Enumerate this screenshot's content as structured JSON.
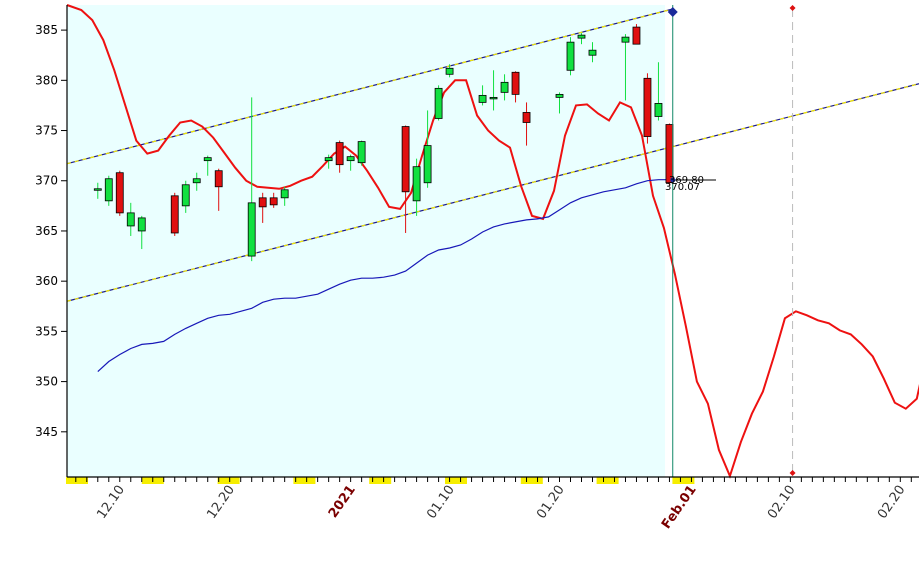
{
  "chart_data": {
    "type": "candlestick",
    "y_ticks": [
      345,
      350,
      355,
      360,
      365,
      370,
      375,
      380,
      385
    ],
    "ylim": [
      340.5,
      387.5
    ],
    "x_labels": [
      {
        "day": 2,
        "text": "12.10",
        "bold": false
      },
      {
        "day": 12,
        "text": "12.20",
        "bold": false
      },
      {
        "day": 23,
        "text": "2021",
        "bold": true
      },
      {
        "day": 32,
        "text": "01.10",
        "bold": false
      },
      {
        "day": 42,
        "text": "01.20",
        "bold": false
      },
      {
        "day": 54,
        "text": "Feb.01",
        "bold": true
      },
      {
        "day": 63,
        "text": "02.10",
        "bold": false
      },
      {
        "day": 73,
        "text": "02.20",
        "bold": false
      }
    ],
    "xlim": [
      -2.8,
      74.7
    ],
    "candles": [
      {
        "d": 0,
        "o": 369.2,
        "h": 369.8,
        "l": 368.2,
        "c": 369.2
      },
      {
        "d": 1,
        "o": 368.0,
        "h": 370.5,
        "l": 367.5,
        "c": 370.2
      },
      {
        "d": 2,
        "o": 370.8,
        "h": 371.0,
        "l": 366.5,
        "c": 366.8
      },
      {
        "d": 3,
        "o": 365.5,
        "h": 367.8,
        "l": 364.5,
        "c": 366.8
      },
      {
        "d": 4,
        "o": 365.0,
        "h": 366.5,
        "l": 363.2,
        "c": 366.3
      },
      {
        "d": 7,
        "o": 368.5,
        "h": 368.8,
        "l": 364.5,
        "c": 364.8
      },
      {
        "d": 8,
        "o": 367.5,
        "h": 370.0,
        "l": 366.8,
        "c": 369.6
      },
      {
        "d": 9,
        "o": 369.8,
        "h": 370.8,
        "l": 369.0,
        "c": 370.2
      },
      {
        "d": 10,
        "o": 372.0,
        "h": 372.5,
        "l": 370.5,
        "c": 372.3
      },
      {
        "d": 11,
        "o": 371.0,
        "h": 371.2,
        "l": 367.0,
        "c": 369.4
      },
      {
        "d": 14,
        "o": 362.5,
        "h": 378.3,
        "l": 362.0,
        "c": 367.8
      },
      {
        "d": 15,
        "o": 368.3,
        "h": 368.8,
        "l": 365.8,
        "c": 367.4
      },
      {
        "d": 16,
        "o": 368.3,
        "h": 368.8,
        "l": 367.3,
        "c": 367.6
      },
      {
        "d": 17,
        "o": 368.3,
        "h": 369.4,
        "l": 367.5,
        "c": 369.1
      },
      {
        "d": 21,
        "o": 372.0,
        "h": 372.6,
        "l": 371.2,
        "c": 372.3
      },
      {
        "d": 22,
        "o": 373.8,
        "h": 374.0,
        "l": 370.8,
        "c": 371.6
      },
      {
        "d": 23,
        "o": 372.0,
        "h": 372.6,
        "l": 371.0,
        "c": 372.4
      },
      {
        "d": 24,
        "o": 371.8,
        "h": 374.0,
        "l": 371.5,
        "c": 373.9
      },
      {
        "d": 28,
        "o": 375.4,
        "h": 375.5,
        "l": 364.8,
        "c": 368.9
      },
      {
        "d": 29,
        "o": 368.0,
        "h": 372.2,
        "l": 366.5,
        "c": 371.4
      },
      {
        "d": 30,
        "o": 369.8,
        "h": 377.0,
        "l": 369.3,
        "c": 373.5
      },
      {
        "d": 31,
        "o": 376.2,
        "h": 379.5,
        "l": 376.0,
        "c": 379.2
      },
      {
        "d": 32,
        "o": 380.6,
        "h": 381.6,
        "l": 380.3,
        "c": 381.2
      },
      {
        "d": 35,
        "o": 377.8,
        "h": 379.5,
        "l": 377.5,
        "c": 378.5
      },
      {
        "d": 36,
        "o": 378.3,
        "h": 381.0,
        "l": 377.0,
        "c": 378.3
      },
      {
        "d": 37,
        "o": 378.8,
        "h": 380.6,
        "l": 378.0,
        "c": 379.8
      },
      {
        "d": 38,
        "o": 380.8,
        "h": 380.9,
        "l": 377.8,
        "c": 378.6
      },
      {
        "d": 39,
        "o": 376.8,
        "h": 377.8,
        "l": 373.5,
        "c": 375.8
      },
      {
        "d": 42,
        "o": 378.3,
        "h": 378.8,
        "l": 376.7,
        "c": 378.6
      },
      {
        "d": 43,
        "o": 381.0,
        "h": 384.3,
        "l": 380.5,
        "c": 383.8
      },
      {
        "d": 44,
        "o": 384.2,
        "h": 384.7,
        "l": 383.6,
        "c": 384.5
      },
      {
        "d": 45,
        "o": 382.5,
        "h": 383.8,
        "l": 381.8,
        "c": 383.0
      },
      {
        "d": 48,
        "o": 383.8,
        "h": 384.6,
        "l": 378.0,
        "c": 384.3
      },
      {
        "d": 49,
        "o": 385.3,
        "h": 385.6,
        "l": 383.6,
        "c": 383.6
      },
      {
        "d": 50,
        "o": 380.2,
        "h": 380.7,
        "l": 373.7,
        "c": 374.4
      },
      {
        "d": 51,
        "o": 376.4,
        "h": 381.8,
        "l": 376.0,
        "c": 377.7
      },
      {
        "d": 52,
        "o": 375.6,
        "h": 375.7,
        "l": 369.6,
        "c": 369.8
      }
    ],
    "series": [
      {
        "color": "#ee1111",
        "points": [
          [
            -2.8,
            387.5
          ],
          [
            -1.5,
            387.0
          ],
          [
            -0.5,
            386.0
          ],
          [
            0.5,
            384.0
          ],
          [
            1.5,
            381.0
          ],
          [
            2.5,
            377.5
          ],
          [
            3.5,
            374.0
          ],
          [
            4.5,
            372.7
          ],
          [
            5.5,
            373.0
          ],
          [
            6.5,
            374.5
          ],
          [
            7.5,
            375.8
          ],
          [
            8.5,
            376.0
          ],
          [
            9.5,
            375.4
          ],
          [
            10.5,
            374.3
          ],
          [
            11.5,
            372.8
          ],
          [
            12.5,
            371.3
          ],
          [
            13.5,
            370.0
          ],
          [
            14.5,
            369.4
          ],
          [
            15.5,
            369.3
          ],
          [
            16.5,
            369.2
          ],
          [
            17.5,
            369.5
          ],
          [
            18.5,
            370.0
          ],
          [
            19.5,
            370.4
          ],
          [
            20.5,
            371.5
          ],
          [
            21.5,
            372.7
          ],
          [
            22.5,
            373.4
          ],
          [
            23.5,
            372.5
          ],
          [
            24.5,
            371.0
          ],
          [
            25.5,
            369.3
          ],
          [
            26.5,
            367.4
          ],
          [
            27.5,
            367.2
          ],
          [
            28.5,
            368.8
          ],
          [
            29.5,
            372.5
          ],
          [
            30.5,
            376.0
          ],
          [
            31.5,
            378.8
          ],
          [
            32.5,
            380.0
          ],
          [
            33.5,
            380.0
          ],
          [
            34.5,
            376.5
          ],
          [
            35.5,
            375.0
          ],
          [
            36.5,
            374.0
          ],
          [
            37.5,
            373.3
          ],
          [
            38.5,
            369.5
          ],
          [
            39.5,
            366.5
          ],
          [
            40.5,
            366.2
          ],
          [
            41.5,
            369.0
          ],
          [
            42.5,
            374.5
          ],
          [
            43.5,
            377.5
          ],
          [
            44.5,
            377.6
          ],
          [
            45.5,
            376.7
          ],
          [
            46.5,
            376.0
          ],
          [
            47.5,
            377.8
          ],
          [
            48.5,
            377.3
          ],
          [
            49.5,
            374.5
          ],
          [
            50.5,
            368.5
          ],
          [
            51.5,
            365.3
          ],
          [
            52.5,
            360.7
          ],
          [
            53.5,
            355.5
          ],
          [
            54.5,
            350.0
          ],
          [
            55.5,
            347.8
          ],
          [
            56.5,
            343.2
          ],
          [
            57.5,
            340.6
          ],
          [
            58.5,
            344.0
          ],
          [
            59.5,
            346.8
          ],
          [
            60.5,
            349.0
          ],
          [
            61.5,
            352.5
          ],
          [
            62.5,
            356.3
          ],
          [
            63.5,
            357.0
          ],
          [
            64.5,
            356.6
          ],
          [
            65.5,
            356.1
          ],
          [
            66.5,
            355.8
          ],
          [
            67.5,
            355.1
          ],
          [
            68.5,
            354.7
          ],
          [
            69.5,
            353.7
          ],
          [
            70.5,
            352.5
          ],
          [
            71.5,
            350.3
          ],
          [
            72.5,
            347.9
          ],
          [
            73.5,
            347.3
          ],
          [
            74.5,
            348.3
          ],
          [
            75.0,
            350.8
          ]
        ]
      },
      {
        "color": "#1818b8",
        "points": [
          [
            0,
            351.0
          ],
          [
            1,
            352.0
          ],
          [
            2,
            352.7
          ],
          [
            3,
            353.3
          ],
          [
            4,
            353.7
          ],
          [
            5,
            353.8
          ],
          [
            6,
            354.0
          ],
          [
            7,
            354.7
          ],
          [
            8,
            355.3
          ],
          [
            9,
            355.8
          ],
          [
            10,
            356.3
          ],
          [
            11,
            356.6
          ],
          [
            12,
            356.7
          ],
          [
            13,
            357.0
          ],
          [
            14,
            357.3
          ],
          [
            15,
            357.9
          ],
          [
            16,
            358.2
          ],
          [
            17,
            358.3
          ],
          [
            18,
            358.3
          ],
          [
            19,
            358.5
          ],
          [
            20,
            358.7
          ],
          [
            21,
            359.2
          ],
          [
            22,
            359.7
          ],
          [
            23,
            360.1
          ],
          [
            24,
            360.3
          ],
          [
            25,
            360.3
          ],
          [
            26,
            360.4
          ],
          [
            27,
            360.6
          ],
          [
            28,
            361.0
          ],
          [
            29,
            361.8
          ],
          [
            30,
            362.6
          ],
          [
            31,
            363.1
          ],
          [
            32,
            363.3
          ],
          [
            33,
            363.6
          ],
          [
            34,
            364.2
          ],
          [
            35,
            364.9
          ],
          [
            36,
            365.4
          ],
          [
            37,
            365.7
          ],
          [
            38,
            365.9
          ],
          [
            39,
            366.1
          ],
          [
            40,
            366.2
          ],
          [
            41,
            366.4
          ],
          [
            42,
            367.1
          ],
          [
            43,
            367.8
          ],
          [
            44,
            368.3
          ],
          [
            45,
            368.6
          ],
          [
            46,
            368.9
          ],
          [
            47,
            369.1
          ],
          [
            48,
            369.3
          ],
          [
            49,
            369.7
          ],
          [
            50,
            370.0
          ],
          [
            51,
            370.1
          ],
          [
            52,
            370.1
          ]
        ]
      }
    ],
    "channel_lines": [
      {
        "y_start": 371.7,
        "y_end": 387.1
      },
      {
        "y_start": 358.0,
        "y_end": 373.4,
        "extend_to_edge": true
      }
    ],
    "last_value_labels": [
      "369.80",
      "370.07"
    ],
    "current_day": 52.3,
    "forecast_marker_day": 63.2
  }
}
